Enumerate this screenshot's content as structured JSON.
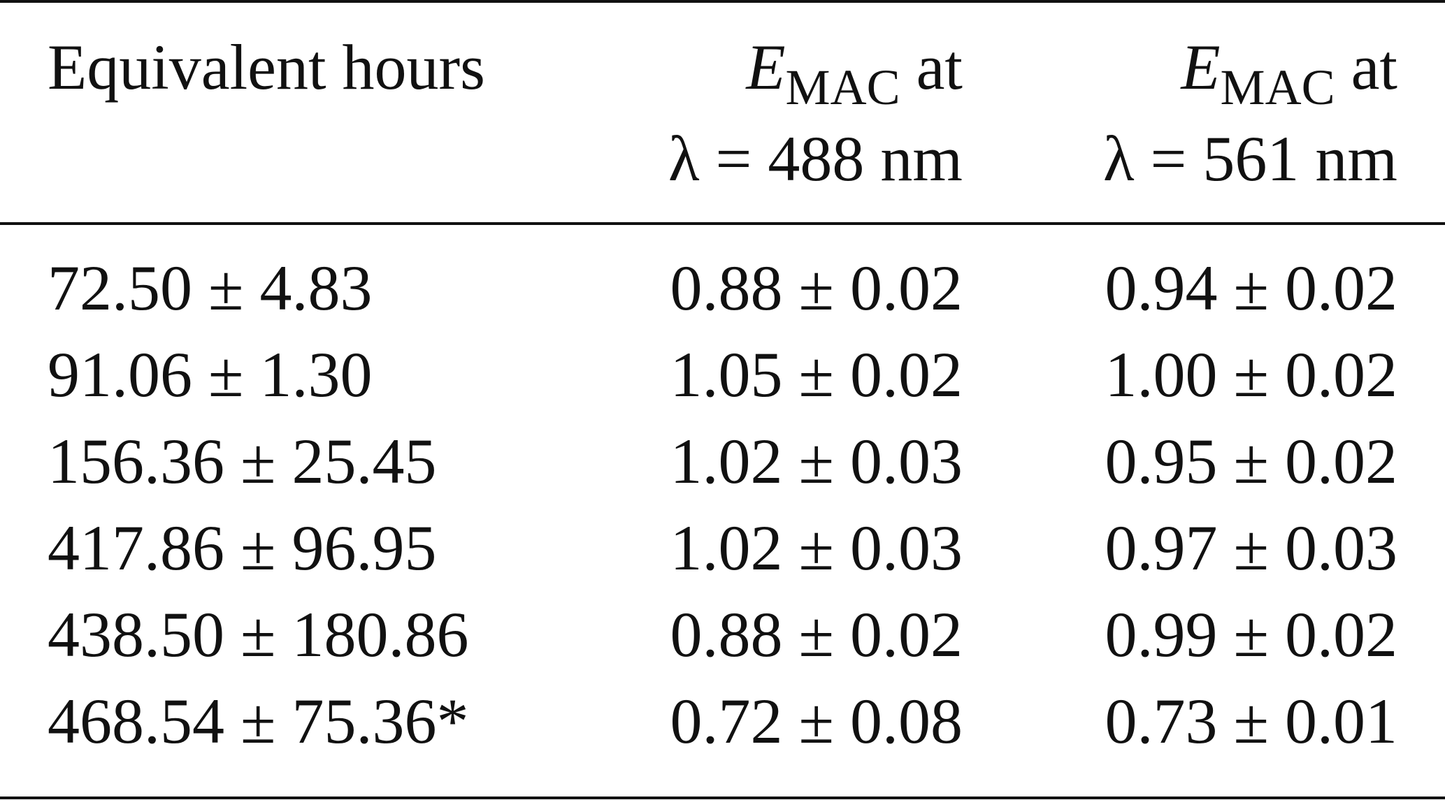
{
  "table": {
    "header": {
      "col1": "Equivalent hours",
      "col2": {
        "symbol": "E",
        "subscript": "MAC",
        "suffix": " at",
        "line2": "λ = 488 nm"
      },
      "col3": {
        "symbol": "E",
        "subscript": "MAC",
        "suffix": " at",
        "line2": "λ = 561 nm"
      }
    },
    "rows": [
      {
        "hours": "72.50 ± 4.83",
        "e488": "0.88 ± 0.02",
        "e561": "0.94 ± 0.02"
      },
      {
        "hours": "91.06 ± 1.30",
        "e488": "1.05 ± 0.02",
        "e561": "1.00 ± 0.02"
      },
      {
        "hours": "156.36 ± 25.45",
        "e488": "1.02 ± 0.03",
        "e561": "0.95 ± 0.02"
      },
      {
        "hours": "417.86 ± 96.95",
        "e488": "1.02 ± 0.03",
        "e561": "0.97 ± 0.03"
      },
      {
        "hours": "438.50 ± 180.86",
        "e488": "0.88 ± 0.02",
        "e561": "0.99 ± 0.02"
      },
      {
        "hours": "468.54 ± 75.36*",
        "e488": "0.72 ± 0.08",
        "e561": "0.73 ± 0.01"
      }
    ]
  }
}
